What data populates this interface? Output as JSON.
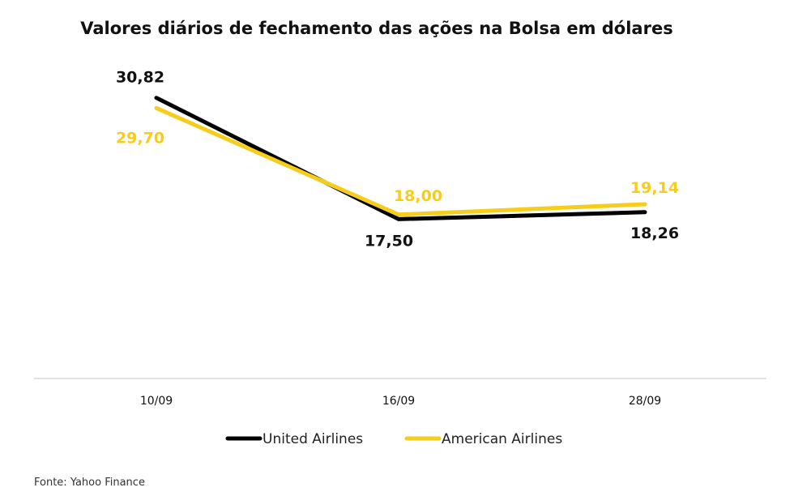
{
  "chart_data": {
    "type": "line",
    "title": "Valores diários de fechamento das ações na Bolsa em dólares",
    "xlabel": "",
    "ylabel": "",
    "categories": [
      "10/09",
      "16/09",
      "28/09"
    ],
    "series": [
      {
        "name": "United Airlines",
        "values": [
          30.82,
          17.5,
          18.26
        ],
        "labels": [
          "30,82",
          "17,50",
          "18,26"
        ],
        "color": "#000000"
      },
      {
        "name": "American Airlines",
        "values": [
          29.7,
          18.0,
          19.14
        ],
        "labels": [
          "29,70",
          "18,00",
          "19,14"
        ],
        "color": "#F5CD1A"
      }
    ],
    "ylim": [
      0,
      35
    ],
    "grid": false,
    "legend": "bottom",
    "source": "Fonte: Yahoo Finance"
  }
}
